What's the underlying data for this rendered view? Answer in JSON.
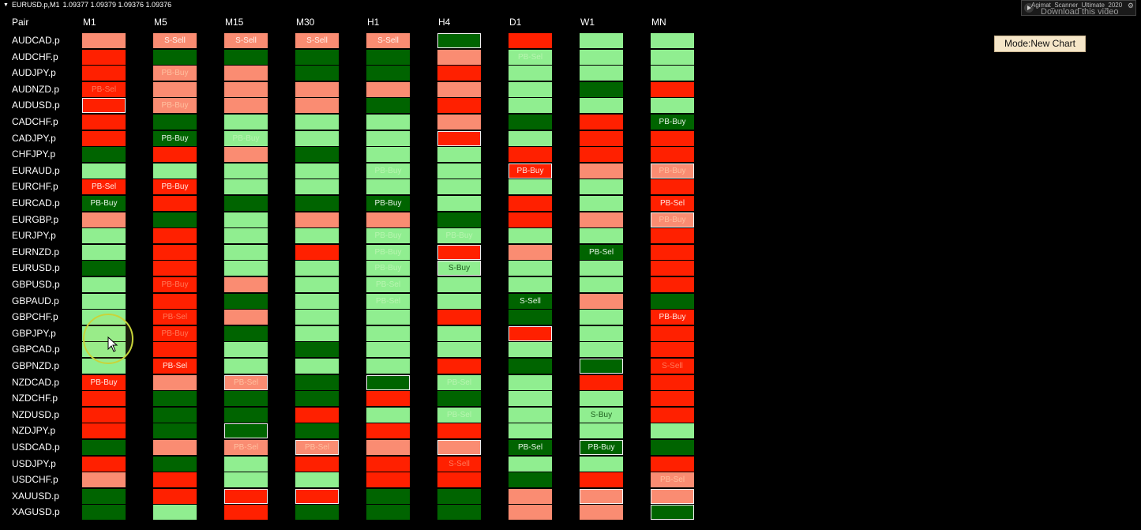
{
  "chart_header": {
    "symbol": "EURUSD.p,M1",
    "quotes": "1.09377 1.09379 1.09376 1.09376"
  },
  "brand": {
    "title": "Agimat_Scanner_Ultimate_2020",
    "download_label": "Download this video"
  },
  "mode_button": "Mode:New Chart",
  "columns": [
    "Pair",
    "M1",
    "M5",
    "M15",
    "M30",
    "H1",
    "H4",
    "D1",
    "W1",
    "MN"
  ],
  "colors": {
    "strong_buy": "#006400",
    "buy": "#90ee90",
    "strong_sell": "#ff2000",
    "sell": "#fa8c72",
    "background": "#000000",
    "mode_button": "#f5e6c8"
  },
  "icons": {
    "play": "play-icon",
    "gear": "gear-icon",
    "cursor": "mouse-pointer-icon"
  },
  "rows": [
    {
      "pair": "AUDCAD.p",
      "cells": [
        {
          "c": "s"
        },
        {
          "c": "s",
          "t": "S-Sell"
        },
        {
          "c": "s",
          "t": "S-Sell"
        },
        {
          "c": "s",
          "t": "S-Sell"
        },
        {
          "c": "s",
          "t": "S-Sell"
        },
        {
          "c": "dg",
          "b": 1
        },
        {
          "c": "r"
        },
        {
          "c": "lg"
        },
        {
          "c": "lg"
        }
      ]
    },
    {
      "pair": "AUDCHF.p",
      "cells": [
        {
          "c": "r"
        },
        {
          "c": "dg"
        },
        {
          "c": "dg"
        },
        {
          "c": "dg"
        },
        {
          "c": "dg"
        },
        {
          "c": "s"
        },
        {
          "c": "lg",
          "t": "PB-Sel",
          "f": 1
        },
        {
          "c": "lg"
        },
        {
          "c": "lg"
        }
      ]
    },
    {
      "pair": "AUDJPY.p",
      "cells": [
        {
          "c": "r"
        },
        {
          "c": "s",
          "t": "PB-Buy",
          "f": 1
        },
        {
          "c": "s"
        },
        {
          "c": "dg"
        },
        {
          "c": "dg"
        },
        {
          "c": "r"
        },
        {
          "c": "lg"
        },
        {
          "c": "lg"
        },
        {
          "c": "lg"
        }
      ]
    },
    {
      "pair": "AUDNZD.p",
      "cells": [
        {
          "c": "r",
          "t": "PB-Sel",
          "f": 1
        },
        {
          "c": "s"
        },
        {
          "c": "s"
        },
        {
          "c": "s"
        },
        {
          "c": "s"
        },
        {
          "c": "s"
        },
        {
          "c": "lg"
        },
        {
          "c": "dg"
        },
        {
          "c": "r"
        }
      ]
    },
    {
      "pair": "AUDUSD.p",
      "cells": [
        {
          "c": "r",
          "b": 1
        },
        {
          "c": "s",
          "t": "PB-Buy",
          "f": 1
        },
        {
          "c": "s"
        },
        {
          "c": "s"
        },
        {
          "c": "dg"
        },
        {
          "c": "r"
        },
        {
          "c": "lg"
        },
        {
          "c": "lg"
        },
        {
          "c": "lg"
        }
      ]
    },
    {
      "pair": "CADCHF.p",
      "cells": [
        {
          "c": "r"
        },
        {
          "c": "dg"
        },
        {
          "c": "lg"
        },
        {
          "c": "lg"
        },
        {
          "c": "lg"
        },
        {
          "c": "s"
        },
        {
          "c": "dg"
        },
        {
          "c": "r"
        },
        {
          "c": "dg",
          "t": "PB-Buy"
        }
      ]
    },
    {
      "pair": "CADJPY.p",
      "cells": [
        {
          "c": "r"
        },
        {
          "c": "dg",
          "t": "PB-Buy"
        },
        {
          "c": "lg",
          "t": "PB-Buy",
          "f": 1
        },
        {
          "c": "lg"
        },
        {
          "c": "lg"
        },
        {
          "c": "r",
          "b": 1
        },
        {
          "c": "lg"
        },
        {
          "c": "r"
        },
        {
          "c": "r"
        }
      ]
    },
    {
      "pair": "CHFJPY.p",
      "cells": [
        {
          "c": "dg"
        },
        {
          "c": "r"
        },
        {
          "c": "s"
        },
        {
          "c": "dg"
        },
        {
          "c": "lg"
        },
        {
          "c": "lg"
        },
        {
          "c": "r"
        },
        {
          "c": "r"
        },
        {
          "c": "r"
        }
      ]
    },
    {
      "pair": "EURAUD.p",
      "cells": [
        {
          "c": "lg"
        },
        {
          "c": "lg"
        },
        {
          "c": "lg"
        },
        {
          "c": "lg"
        },
        {
          "c": "lg",
          "t": "PB-Buy",
          "f": 1
        },
        {
          "c": "lg"
        },
        {
          "c": "r",
          "t": "PB-Buy",
          "b": 1
        },
        {
          "c": "s"
        },
        {
          "c": "s",
          "t": "PB-Buy",
          "f": 1,
          "b": 1
        }
      ]
    },
    {
      "pair": "EURCHF.p",
      "cells": [
        {
          "c": "r",
          "t": "PB-Sel"
        },
        {
          "c": "r",
          "t": "PB-Buy"
        },
        {
          "c": "lg"
        },
        {
          "c": "lg"
        },
        {
          "c": "lg"
        },
        {
          "c": "lg"
        },
        {
          "c": "lg"
        },
        {
          "c": "lg"
        },
        {
          "c": "r"
        }
      ]
    },
    {
      "pair": "EURCAD.p",
      "cells": [
        {
          "c": "dg",
          "t": "PB-Buy"
        },
        {
          "c": "r"
        },
        {
          "c": "dg"
        },
        {
          "c": "dg"
        },
        {
          "c": "dg",
          "t": "PB-Buy"
        },
        {
          "c": "lg"
        },
        {
          "c": "r"
        },
        {
          "c": "lg"
        },
        {
          "c": "r",
          "t": "PB-Sel"
        }
      ]
    },
    {
      "pair": "EURGBP.p",
      "cells": [
        {
          "c": "s"
        },
        {
          "c": "dg"
        },
        {
          "c": "lg"
        },
        {
          "c": "s"
        },
        {
          "c": "s"
        },
        {
          "c": "dg"
        },
        {
          "c": "r"
        },
        {
          "c": "s"
        },
        {
          "c": "s",
          "t": "PB-Buy",
          "f": 1,
          "b": 1
        }
      ]
    },
    {
      "pair": "EURJPY.p",
      "cells": [
        {
          "c": "lg"
        },
        {
          "c": "r"
        },
        {
          "c": "lg"
        },
        {
          "c": "lg"
        },
        {
          "c": "lg",
          "t": "PB-Buy",
          "f": 1
        },
        {
          "c": "lg",
          "t": "PB-Buy",
          "f": 1
        },
        {
          "c": "lg"
        },
        {
          "c": "lg"
        },
        {
          "c": "r"
        }
      ]
    },
    {
      "pair": "EURNZD.p",
      "cells": [
        {
          "c": "lg"
        },
        {
          "c": "r"
        },
        {
          "c": "lg"
        },
        {
          "c": "r"
        },
        {
          "c": "lg",
          "t": "PB-Buy",
          "f": 1
        },
        {
          "c": "r",
          "b": 1
        },
        {
          "c": "s"
        },
        {
          "c": "dg",
          "t": "PB-Sel"
        },
        {
          "c": "r"
        }
      ]
    },
    {
      "pair": "EURUSD.p",
      "cells": [
        {
          "c": "dg"
        },
        {
          "c": "r"
        },
        {
          "c": "lg"
        },
        {
          "c": "lg"
        },
        {
          "c": "lg",
          "t": "PB-Buy",
          "f": 1
        },
        {
          "c": "lg",
          "t": "S-Buy",
          "b": 1
        },
        {
          "c": "lg"
        },
        {
          "c": "lg"
        },
        {
          "c": "r"
        }
      ]
    },
    {
      "pair": "GBPUSD.p",
      "cells": [
        {
          "c": "lg"
        },
        {
          "c": "r",
          "t": "PB-Buy",
          "f": 1
        },
        {
          "c": "s"
        },
        {
          "c": "lg"
        },
        {
          "c": "lg",
          "t": "PB-Sel",
          "f": 1
        },
        {
          "c": "lg"
        },
        {
          "c": "lg"
        },
        {
          "c": "lg"
        },
        {
          "c": "r"
        }
      ]
    },
    {
      "pair": "GBPAUD.p",
      "cells": [
        {
          "c": "lg"
        },
        {
          "c": "r"
        },
        {
          "c": "dg"
        },
        {
          "c": "lg"
        },
        {
          "c": "lg",
          "t": "PB-Sel",
          "f": 1
        },
        {
          "c": "lg"
        },
        {
          "c": "dg",
          "t": "S-Sell",
          "f": 1
        },
        {
          "c": "s"
        },
        {
          "c": "dg"
        }
      ]
    },
    {
      "pair": "GBPCHF.p",
      "cells": [
        {
          "c": "lg"
        },
        {
          "c": "r",
          "t": "PB-Sel",
          "f": 1
        },
        {
          "c": "s"
        },
        {
          "c": "lg"
        },
        {
          "c": "lg"
        },
        {
          "c": "r"
        },
        {
          "c": "dg"
        },
        {
          "c": "lg"
        },
        {
          "c": "r",
          "t": "PB-Buy"
        }
      ]
    },
    {
      "pair": "GBPJPY.p",
      "cells": [
        {
          "c": "lg"
        },
        {
          "c": "r",
          "t": "PB-Buy",
          "f": 1
        },
        {
          "c": "dg"
        },
        {
          "c": "lg"
        },
        {
          "c": "lg"
        },
        {
          "c": "lg"
        },
        {
          "c": "r",
          "b": 1
        },
        {
          "c": "lg"
        },
        {
          "c": "r"
        }
      ]
    },
    {
      "pair": "GBPCAD.p",
      "cells": [
        {
          "c": "lg"
        },
        {
          "c": "r"
        },
        {
          "c": "lg"
        },
        {
          "c": "dg"
        },
        {
          "c": "lg"
        },
        {
          "c": "lg"
        },
        {
          "c": "lg"
        },
        {
          "c": "lg"
        },
        {
          "c": "r"
        }
      ]
    },
    {
      "pair": "GBPNZD.p",
      "cells": [
        {
          "c": "lg"
        },
        {
          "c": "r",
          "t": "PB-Sel"
        },
        {
          "c": "lg"
        },
        {
          "c": "lg"
        },
        {
          "c": "lg"
        },
        {
          "c": "r"
        },
        {
          "c": "dg"
        },
        {
          "c": "dg",
          "b": 1
        },
        {
          "c": "r",
          "t": "S-Sell",
          "f": 1
        }
      ]
    },
    {
      "pair": "NZDCAD.p",
      "cells": [
        {
          "c": "r",
          "t": "PB-Buy"
        },
        {
          "c": "s"
        },
        {
          "c": "s",
          "t": "PB-Sel",
          "f": 1,
          "b": 1
        },
        {
          "c": "dg"
        },
        {
          "c": "dg",
          "b": 1
        },
        {
          "c": "lg",
          "t": "PB-Sel",
          "f": 1
        },
        {
          "c": "lg"
        },
        {
          "c": "r"
        },
        {
          "c": "r"
        }
      ]
    },
    {
      "pair": "NZDCHF.p",
      "cells": [
        {
          "c": "r"
        },
        {
          "c": "dg"
        },
        {
          "c": "dg"
        },
        {
          "c": "dg"
        },
        {
          "c": "r"
        },
        {
          "c": "dg"
        },
        {
          "c": "lg"
        },
        {
          "c": "lg"
        },
        {
          "c": "r"
        }
      ]
    },
    {
      "pair": "NZDUSD.p",
      "cells": [
        {
          "c": "r"
        },
        {
          "c": "dg"
        },
        {
          "c": "dg"
        },
        {
          "c": "r"
        },
        {
          "c": "lg"
        },
        {
          "c": "lg",
          "t": "PB-Sel",
          "f": 1
        },
        {
          "c": "lg"
        },
        {
          "c": "lg",
          "t": "S-Buy"
        },
        {
          "c": "r"
        }
      ]
    },
    {
      "pair": "NZDJPY.p",
      "cells": [
        {
          "c": "r"
        },
        {
          "c": "dg"
        },
        {
          "c": "dg",
          "b": 1
        },
        {
          "c": "dg"
        },
        {
          "c": "r"
        },
        {
          "c": "r"
        },
        {
          "c": "lg"
        },
        {
          "c": "lg"
        },
        {
          "c": "lg"
        }
      ]
    },
    {
      "pair": "USDCAD.p",
      "cells": [
        {
          "c": "dg"
        },
        {
          "c": "s"
        },
        {
          "c": "s",
          "t": "PB-Sel",
          "f": 1
        },
        {
          "c": "s",
          "t": "PB-Sel",
          "f": 1,
          "b": 1
        },
        {
          "c": "s"
        },
        {
          "c": "s",
          "b": 1
        },
        {
          "c": "dg",
          "t": "PB-Sel"
        },
        {
          "c": "dg",
          "t": "PB-Buy",
          "b": 1
        },
        {
          "c": "dg"
        }
      ]
    },
    {
      "pair": "USDJPY.p",
      "cells": [
        {
          "c": "r"
        },
        {
          "c": "dg"
        },
        {
          "c": "lg"
        },
        {
          "c": "r"
        },
        {
          "c": "r"
        },
        {
          "c": "r",
          "t": "S-Sell",
          "f": 1
        },
        {
          "c": "lg"
        },
        {
          "c": "lg"
        },
        {
          "c": "r"
        }
      ]
    },
    {
      "pair": "USDCHF.p",
      "cells": [
        {
          "c": "s"
        },
        {
          "c": "r"
        },
        {
          "c": "lg"
        },
        {
          "c": "lg"
        },
        {
          "c": "r"
        },
        {
          "c": "r"
        },
        {
          "c": "dg"
        },
        {
          "c": "r"
        },
        {
          "c": "s",
          "t": "PB-Sel",
          "f": 1
        }
      ]
    },
    {
      "pair": "XAUUSD.p",
      "cells": [
        {
          "c": "dg"
        },
        {
          "c": "r"
        },
        {
          "c": "r",
          "b": 1
        },
        {
          "c": "r",
          "b": 1
        },
        {
          "c": "dg"
        },
        {
          "c": "dg"
        },
        {
          "c": "s"
        },
        {
          "c": "s",
          "b": 1
        },
        {
          "c": "s",
          "b": 1
        }
      ]
    },
    {
      "pair": "XAGUSD.p",
      "cells": [
        {
          "c": "dg"
        },
        {
          "c": "lg"
        },
        {
          "c": "r"
        },
        {
          "c": "dg"
        },
        {
          "c": "dg"
        },
        {
          "c": "dg"
        },
        {
          "c": "s"
        },
        {
          "c": "s"
        },
        {
          "c": "dg",
          "b": 1
        }
      ]
    }
  ]
}
